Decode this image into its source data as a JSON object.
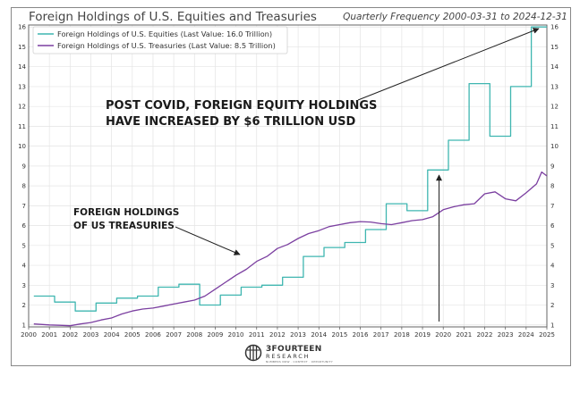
{
  "chart_data": {
    "type": "line",
    "title": "Foreign Holdings of U.S. Equities and Treasuries",
    "subtitle": "Quarterly Frequency 2000-03-31 to 2024-12-31",
    "xlabel": "",
    "ylabel": "",
    "xlim": [
      2000,
      2025
    ],
    "ylim": [
      0.9,
      16.1
    ],
    "x_ticks": [
      "2000",
      "2001",
      "2002",
      "2003",
      "2004",
      "2005",
      "2006",
      "2007",
      "2008",
      "2009",
      "2010",
      "2011",
      "2012",
      "2013",
      "2014",
      "2015",
      "2016",
      "2017",
      "2018",
      "2019",
      "2020",
      "2021",
      "2022",
      "2023",
      "2024",
      "2025"
    ],
    "y_ticks": [
      "1",
      "2",
      "3",
      "4",
      "5",
      "6",
      "7",
      "8",
      "9",
      "10",
      "11",
      "12",
      "13",
      "14",
      "15",
      "16"
    ],
    "grid": true,
    "legend": "top-left",
    "series": [
      {
        "name": "Foreign Holdings of U.S. Equities (Last Value: 16.0 Trillion)",
        "color": "#3fb6b0",
        "step": true,
        "x": [
          2000.25,
          2001.25,
          2002.25,
          2003.25,
          2004.25,
          2005.25,
          2006.25,
          2007.25,
          2008.25,
          2009.25,
          2010.25,
          2011.25,
          2012.25,
          2013.25,
          2014.25,
          2015.25,
          2016.25,
          2017.25,
          2018.25,
          2019.25,
          2020.25,
          2021.25,
          2022.25,
          2023.25,
          2024.25,
          2025.0
        ],
        "values": [
          2.45,
          2.15,
          1.7,
          2.1,
          2.35,
          2.45,
          2.9,
          3.05,
          2.0,
          2.5,
          2.9,
          3.0,
          3.4,
          4.45,
          4.9,
          5.15,
          5.8,
          7.1,
          6.75,
          8.8,
          10.3,
          13.15,
          10.5,
          13.0,
          16.0,
          16.0
        ]
      },
      {
        "name": "Foreign Holdings of U.S. Treasuries (Last Value: 8.5 Trillion)",
        "color": "#7b3fa0",
        "step": false,
        "x": [
          2000.25,
          2001.0,
          2001.5,
          2002.0,
          2002.5,
          2003.0,
          2003.5,
          2004.0,
          2004.5,
          2005.0,
          2005.5,
          2006.0,
          2006.5,
          2007.0,
          2007.5,
          2008.0,
          2008.5,
          2009.0,
          2009.5,
          2010.0,
          2010.5,
          2011.0,
          2011.5,
          2012.0,
          2012.5,
          2013.0,
          2013.5,
          2014.0,
          2014.5,
          2015.0,
          2015.5,
          2016.0,
          2016.5,
          2017.0,
          2017.5,
          2018.0,
          2018.5,
          2019.0,
          2019.5,
          2020.0,
          2020.5,
          2021.0,
          2021.5,
          2022.0,
          2022.5,
          2023.0,
          2023.5,
          2024.0,
          2024.5,
          2024.75,
          2025.0
        ],
        "values": [
          1.05,
          1.0,
          0.98,
          0.96,
          1.05,
          1.12,
          1.25,
          1.35,
          1.55,
          1.7,
          1.8,
          1.85,
          1.95,
          2.05,
          2.15,
          2.25,
          2.45,
          2.8,
          3.15,
          3.5,
          3.8,
          4.2,
          4.45,
          4.85,
          5.05,
          5.35,
          5.6,
          5.75,
          5.95,
          6.05,
          6.15,
          6.2,
          6.18,
          6.1,
          6.05,
          6.15,
          6.25,
          6.3,
          6.45,
          6.8,
          6.95,
          7.05,
          7.1,
          7.6,
          7.7,
          7.35,
          7.25,
          7.65,
          8.1,
          8.7,
          8.5
        ]
      }
    ],
    "annotations": [
      {
        "text_lines": [
          "POST COVID, FOREIGN EQUITY HOLDINGS",
          "HAVE INCREASED BY $6 TRILLION USD"
        ]
      },
      {
        "text_lines": [
          "FOREIGN HOLDINGS",
          "OF US TREASURIES"
        ]
      }
    ]
  },
  "brand": {
    "name": "3FOURTEEN",
    "sub": "RESEARCH",
    "tagline": "NUMBERS NOW · CONTEXT · OPPORTUNITY"
  },
  "colors": {
    "equities": "#3fb6b0",
    "treasuries": "#7b3fa0",
    "grid": "#e4e4e4",
    "axis": "#555555"
  }
}
